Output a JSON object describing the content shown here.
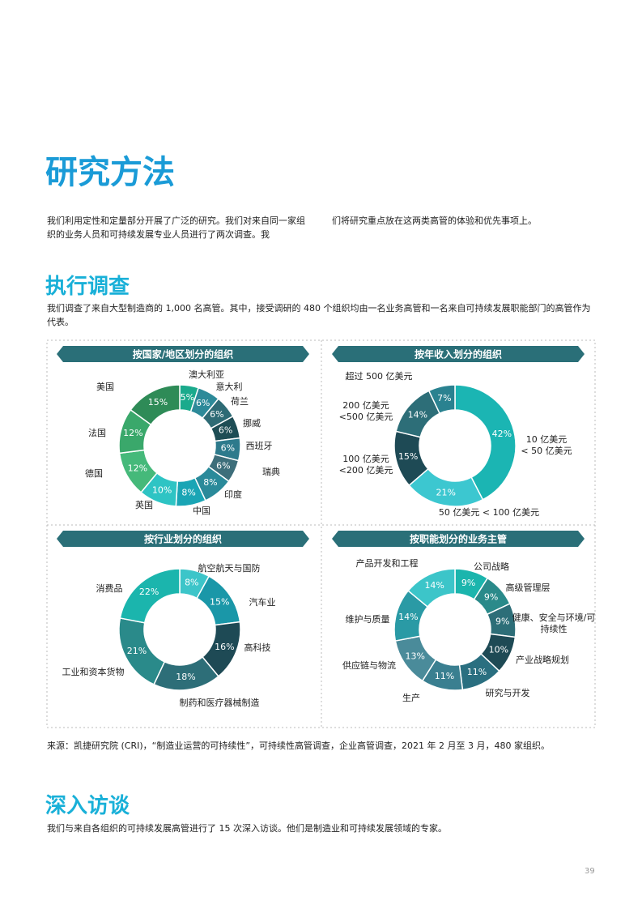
{
  "header": {
    "title": "研究方法"
  },
  "intro": [
    "我们利用定性和定量部分开展了广泛的研究。我们对来自同一家组织的业务人员和可持续发展专业人员进行了两次调查。我",
    "们将研究重点放在这两类高管的体验和优先事项上。"
  ],
  "survey": {
    "heading": "执行调查",
    "text": "我们调查了来自大型制造商的 1,000 名高管。其中，接受调研的 480 个组织均由一名业务高管和一名来自可持续发展职能部门的高管作为代表。"
  },
  "chart_data": [
    {
      "type": "pie",
      "title": "按国家/地区划分的组织",
      "categories": [
        "澳大利亚",
        "意大利",
        "荷兰",
        "挪威",
        "西班牙",
        "瑞典",
        "印度",
        "中国",
        "英国",
        "德国",
        "法国",
        "美国"
      ],
      "values": [
        5,
        6,
        6,
        6,
        6,
        6,
        8,
        8,
        10,
        12,
        12,
        15
      ],
      "value_labels": [
        "5%",
        "6%",
        "6%",
        "6%",
        "6%",
        "6%",
        "8%",
        "8%",
        "10%",
        "12%",
        "12%",
        "15%"
      ],
      "colors": [
        "#1aaa8c",
        "#2d8a99",
        "#2e6b75",
        "#1e4d55",
        "#2d7a8c",
        "#3d6e7a",
        "#2a8a9a",
        "#1aa5b5",
        "#2ec4c4",
        "#45b97a",
        "#3aa86b",
        "#2e8b57"
      ]
    },
    {
      "type": "pie",
      "title": "按年收入划分的组织",
      "categories": [
        "10 亿美元\n< 50 亿美元",
        "50 亿美元 < 100 亿美元",
        "100 亿美元\n<200 亿美元",
        "200 亿美元\n<500 亿美元",
        "超过 500 亿美元"
      ],
      "values": [
        42,
        21,
        15,
        14,
        7
      ],
      "value_labels": [
        "42%",
        "21%",
        "15%",
        "14%",
        "7%"
      ],
      "colors": [
        "#1bb5b3",
        "#3cc7d0",
        "#1e4a55",
        "#2d6e78",
        "#2a8290"
      ]
    },
    {
      "type": "pie",
      "title": "按行业划分的组织",
      "categories": [
        "航空航天与国防",
        "汽车业",
        "高科技",
        "制药和医疗器械制造",
        "工业和资本货物",
        "消费品"
      ],
      "values": [
        8,
        15,
        16,
        18,
        21,
        22
      ],
      "value_labels": [
        "8%",
        "15%",
        "16%",
        "18%",
        "21%",
        "22%"
      ],
      "colors": [
        "#3cc5c9",
        "#1a97a8",
        "#1e4a55",
        "#2d6e78",
        "#2a8a8a",
        "#1bb5ad"
      ]
    },
    {
      "type": "pie",
      "title": "按职能划分的业务主管",
      "categories": [
        "公司战略",
        "高级管理层",
        "健康、安全与环境/可持续性",
        "产业战略规划",
        "研究与开发",
        "生产",
        "供应链与物流",
        "维护与质量",
        "产品开发和工程"
      ],
      "values": [
        9,
        9,
        9,
        10,
        11,
        11,
        13,
        14,
        14
      ],
      "value_labels": [
        "9%",
        "9%",
        "9%",
        "10%",
        "11%",
        "11%",
        "13%",
        "14%",
        "14%"
      ],
      "colors": [
        "#1bb5ad",
        "#2a8a8a",
        "#2d6e78",
        "#1e4a55",
        "#2a6f80",
        "#3a7f90",
        "#4a8b9a",
        "#2a9aa5",
        "#3cc5c9"
      ]
    }
  ],
  "source": "来源：凯捷研究院 (CRI)，“制造业运营的可持续性”，可持续性高管调查，企业高管调查，2021 年 2 月至 3 月，480 家组织。",
  "interviews": {
    "heading": "深入访谈",
    "text": "我们与来自各组织的可持续发展高管进行了 15 次深入访谈。他们是制造业和可持续发展领域的专家。"
  },
  "page_number": "39"
}
